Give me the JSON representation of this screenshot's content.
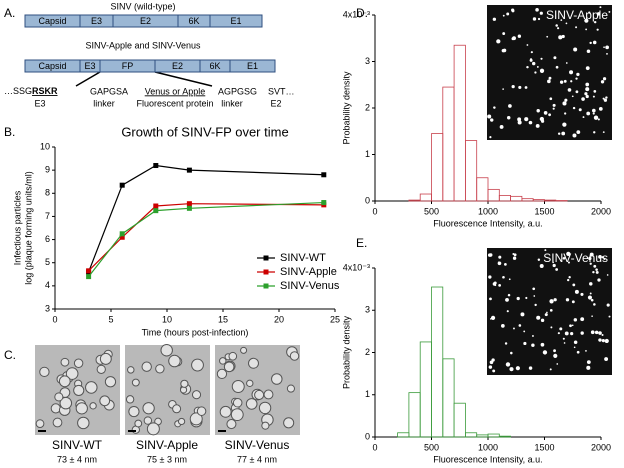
{
  "panel_labels": [
    "A.",
    "B.",
    "C.",
    "D.",
    "E."
  ],
  "panel_a": {
    "wt_title": "SINV (wild-type)",
    "wt_segments": [
      "Capsid",
      "E3",
      "E2",
      "6K",
      "E1"
    ],
    "fp_title": "SINV-Apple and SINV-Venus",
    "fp_segments": [
      "Capsid",
      "E3",
      "FP",
      "E2",
      "6K",
      "E1"
    ],
    "junction_seq": [
      "…SSG",
      "RSKR",
      "GAPGSA",
      "Venus or Apple",
      "AGPGSG",
      "SVT…"
    ],
    "junction_names": [
      "E3",
      "linker",
      "Fluorescent protein",
      "linker",
      "E2"
    ]
  },
  "chart_data": [
    {
      "type": "line",
      "title": "Growth of SINV-FP over time",
      "xlabel": "Time (hours post-infection)",
      "ylabel": [
        "Infectious particles",
        "log (plaque forming units/ml)"
      ],
      "x": [
        3,
        6,
        9,
        12,
        24
      ],
      "series": [
        {
          "name": "SINV-WT",
          "color": "#000000",
          "values": [
            4.6,
            8.35,
            9.2,
            9.0,
            8.8
          ]
        },
        {
          "name": "SINV-Apple",
          "color": "#cc0000",
          "values": [
            4.65,
            6.1,
            7.45,
            7.55,
            7.5
          ]
        },
        {
          "name": "SINV-Venus",
          "color": "#2ca02c",
          "values": [
            4.4,
            6.25,
            7.25,
            7.35,
            7.6
          ]
        }
      ],
      "xlim": [
        0,
        25
      ],
      "xticks": [
        0,
        5,
        10,
        15,
        20,
        25
      ],
      "ylim": [
        3,
        10
      ],
      "yticks": [
        3,
        4,
        5,
        6,
        7,
        8,
        9,
        10
      ],
      "legend": "right"
    },
    {
      "type": "histogram",
      "inset_label": "SINV-Apple",
      "xlabel": "Fluorescence Intensity, a.u.",
      "ylabel": "Probability density",
      "bins": [
        0,
        100,
        200,
        300,
        400,
        500,
        600,
        700,
        800,
        900,
        1000,
        1100,
        1200,
        1300,
        1400,
        1500,
        1600,
        1700,
        1800,
        1900,
        2000
      ],
      "values": [
        0,
        0,
        0,
        0.02,
        0.15,
        1.45,
        2.45,
        3.35,
        1.3,
        0.5,
        0.25,
        0.12,
        0.1,
        0.05,
        0.03,
        0.02,
        0.01,
        0,
        0,
        0
      ],
      "color": "#c8404c",
      "xlim": [
        0,
        2000
      ],
      "xticks": [
        0,
        500,
        1000,
        1500,
        2000
      ],
      "ylim": [
        0,
        4
      ],
      "yticks": [
        0,
        1,
        2,
        3,
        {
          "value": 4,
          "label": "4x10⁻³"
        }
      ]
    },
    {
      "type": "histogram",
      "inset_label": "SINV-Venus",
      "xlabel": "Fluorescence Intensity, a.u.",
      "ylabel": "Probability density",
      "bins": [
        0,
        100,
        200,
        300,
        400,
        500,
        600,
        700,
        800,
        900,
        1000,
        1100,
        1200,
        1300,
        1400,
        1500,
        1600,
        1700,
        1800,
        1900,
        2000
      ],
      "values": [
        0,
        0,
        0.1,
        1.05,
        2.25,
        3.55,
        1.85,
        0.8,
        0.1,
        0.05,
        0.07,
        0.02,
        0,
        0,
        0,
        0,
        0,
        0,
        0,
        0
      ],
      "color": "#3a9a3a",
      "xlim": [
        0,
        2000
      ],
      "xticks": [
        0,
        500,
        1000,
        1500,
        2000
      ],
      "ylim": [
        0,
        4
      ],
      "yticks": [
        0,
        1,
        2,
        3,
        {
          "value": 4,
          "label": "4x10⁻³"
        }
      ]
    }
  ],
  "panel_c": {
    "images": [
      {
        "name": "SINV-WT",
        "size": "73 ± 4 nm"
      },
      {
        "name": "SINV-Apple",
        "size": "75 ± 3 nm"
      },
      {
        "name": "SINV-Venus",
        "size": "77 ± 4 nm"
      }
    ]
  }
}
